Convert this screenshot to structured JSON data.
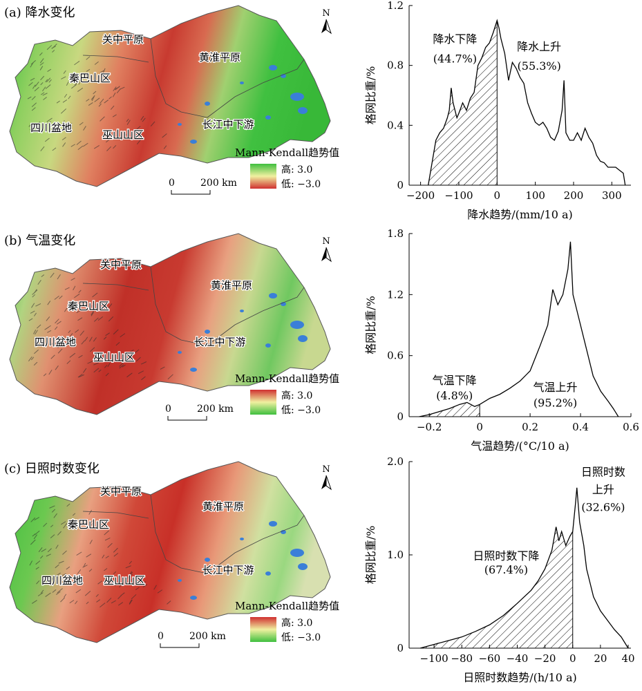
{
  "panels": [
    {
      "id": "a",
      "title": "(a) 降水变化",
      "map": {
        "regions": [
          "关中平原",
          "秦巴山区",
          "四川盆地",
          "巫山山区",
          "黄淮平原",
          "长江中下游"
        ],
        "north_label": "N",
        "legend_title": "Mann-Kendall趋势值",
        "legend_high": "高: 3.0",
        "legend_low": "低: −3.0",
        "legend_high_color": "#3fbf3f",
        "legend_low_color": "#d03030",
        "scale_zero": "0",
        "scale_label": "200 km"
      },
      "chart_data": {
        "type": "area",
        "title": "",
        "xlabel": "降水趋势/(mm/10 a)",
        "ylabel": "格网比重/%",
        "xlim": [
          -230,
          350
        ],
        "ylim": [
          0,
          1.2
        ],
        "xticks": [
          -200,
          -100,
          0,
          100,
          200,
          300
        ],
        "yticks": [
          0,
          0.4,
          0.8,
          1.2
        ],
        "xtick_labels": [
          "−200",
          "−100",
          "0",
          "100",
          "200",
          "300"
        ],
        "ytick_labels": [
          "0",
          "0.4",
          "0.8",
          "1.2"
        ],
        "x": [
          -180,
          -170,
          -160,
          -150,
          -140,
          -130,
          -125,
          -120,
          -115,
          -110,
          -105,
          -100,
          -90,
          -80,
          -70,
          -60,
          -50,
          -40,
          -30,
          -20,
          -10,
          0,
          5,
          10,
          20,
          30,
          40,
          50,
          60,
          70,
          80,
          90,
          100,
          110,
          120,
          130,
          140,
          150,
          160,
          170,
          175,
          180,
          190,
          200,
          210,
          220,
          230,
          240,
          250,
          260,
          270,
          280,
          290,
          300,
          310,
          320,
          330,
          335
        ],
        "y": [
          0,
          0.15,
          0.3,
          0.35,
          0.38,
          0.45,
          0.5,
          0.65,
          0.55,
          0.5,
          0.45,
          0.48,
          0.55,
          0.5,
          0.58,
          0.62,
          0.8,
          0.85,
          0.92,
          0.95,
          1.02,
          1.1,
          1.05,
          0.98,
          0.88,
          0.7,
          0.82,
          0.78,
          0.72,
          0.68,
          0.55,
          0.48,
          0.42,
          0.4,
          0.42,
          0.38,
          0.32,
          0.3,
          0.36,
          0.5,
          0.7,
          0.35,
          0.3,
          0.3,
          0.35,
          0.3,
          0.38,
          0.32,
          0.28,
          0.2,
          0.16,
          0.15,
          0.12,
          0.12,
          0.12,
          0.1,
          0.08,
          0
        ],
        "split_x": 0,
        "annotations": [
          {
            "text": "降水下降",
            "x": -110,
            "y": 0.95
          },
          {
            "text": "(44.7%)",
            "x": -110,
            "y": 0.82
          },
          {
            "text": "降水上升",
            "x": 110,
            "y": 0.9
          },
          {
            "text": "(55.3%)",
            "x": 110,
            "y": 0.77
          }
        ]
      }
    },
    {
      "id": "b",
      "title": "(b) 气温变化",
      "map": {
        "regions": [
          "关中平原",
          "秦巴山区",
          "四川盆地",
          "巫山山区",
          "黄淮平原",
          "长江中下游"
        ],
        "north_label": "N",
        "legend_title": "Mann-Kendall趋势值",
        "legend_high": "高: 3.0",
        "legend_low": "低: −3.0",
        "legend_high_color": "#d03030",
        "legend_low_color": "#3fbf3f",
        "scale_zero": "0",
        "scale_label": "200 km"
      },
      "chart_data": {
        "type": "area",
        "title": "",
        "xlabel": "气温趋势/(°C/10 a)",
        "ylabel": "格网比重/%",
        "xlim": [
          -0.28,
          0.6
        ],
        "ylim": [
          0,
          1.8
        ],
        "xticks": [
          -0.2,
          0,
          0.2,
          0.4,
          0.6
        ],
        "yticks": [
          0,
          0.6,
          1.2,
          1.8
        ],
        "xtick_labels": [
          "−0.2",
          "0",
          "0.2",
          "0.4",
          "0.6"
        ],
        "ytick_labels": [
          "0",
          "0.6",
          "1.2",
          "1.8"
        ],
        "x": [
          -0.24,
          -0.2,
          -0.16,
          -0.12,
          -0.08,
          -0.05,
          -0.02,
          0,
          0.04,
          0.08,
          0.12,
          0.16,
          0.2,
          0.24,
          0.27,
          0.29,
          0.31,
          0.33,
          0.35,
          0.36,
          0.37,
          0.39,
          0.42,
          0.45,
          0.48,
          0.51,
          0.53,
          0.55
        ],
        "y": [
          0,
          0.02,
          0.05,
          0.08,
          0.12,
          0.14,
          0.1,
          0.12,
          0.18,
          0.22,
          0.28,
          0.35,
          0.45,
          0.7,
          0.9,
          1.25,
          1.1,
          1.2,
          1.45,
          1.72,
          1.2,
          1.0,
          0.7,
          0.4,
          0.25,
          0.15,
          0.08,
          0
        ],
        "split_x": 0,
        "annotations": [
          {
            "text": "气温下降",
            "x": -0.1,
            "y": 0.32
          },
          {
            "text": "(4.8%)",
            "x": -0.1,
            "y": 0.17
          },
          {
            "text": "气温上升",
            "x": 0.3,
            "y": 0.25
          },
          {
            "text": "(95.2%)",
            "x": 0.3,
            "y": 0.1
          }
        ]
      }
    },
    {
      "id": "c",
      "title": "(c) 日照时数变化",
      "map": {
        "regions": [
          "关中平原",
          "秦巴山区",
          "四川盆地",
          "巫山山区",
          "黄淮平原",
          "长江中下游"
        ],
        "north_label": "N",
        "legend_title": "Mann-Kendall趋势值",
        "legend_high": "高: 3.0",
        "legend_low": "低: −3.0",
        "legend_high_color": "#d03030",
        "legend_low_color": "#3fbf3f",
        "scale_zero": "0",
        "scale_label": "200 km"
      },
      "chart_data": {
        "type": "area",
        "title": "",
        "xlabel": "日照时数趋势/(h/10 a)",
        "ylabel": "格网比重/%",
        "xlim": [
          -118,
          42
        ],
        "ylim": [
          0,
          2.0
        ],
        "xticks": [
          -100,
          -80,
          -60,
          -40,
          -20,
          0,
          20,
          40
        ],
        "yticks": [
          0,
          1.0,
          2.0
        ],
        "xtick_labels": [
          "−100",
          "−80",
          "−60",
          "−40",
          "−20",
          "0",
          "20",
          "40"
        ],
        "ytick_labels": [
          "0",
          "1.0",
          "2.0"
        ],
        "x": [
          -110,
          -100,
          -90,
          -80,
          -70,
          -60,
          -50,
          -40,
          -30,
          -25,
          -20,
          -15,
          -12,
          -10,
          -8,
          -5,
          -2,
          0,
          2,
          3,
          5,
          8,
          10,
          15,
          20,
          25,
          30,
          35,
          40
        ],
        "y": [
          0,
          0.04,
          0.08,
          0.12,
          0.18,
          0.25,
          0.35,
          0.48,
          0.62,
          0.72,
          0.85,
          1.05,
          1.3,
          1.15,
          1.25,
          1.1,
          1.2,
          1.25,
          1.55,
          1.72,
          1.35,
          1.1,
          0.85,
          0.55,
          0.4,
          0.3,
          0.2,
          0.12,
          0
        ],
        "split_x": 0,
        "annotations": [
          {
            "text": "日照时数下降",
            "x": -48,
            "y": 0.95
          },
          {
            "text": "(67.4%)",
            "x": -48,
            "y": 0.8
          },
          {
            "text": "日照时数",
            "x": 22,
            "y": 1.85
          },
          {
            "text": "上升",
            "x": 22,
            "y": 1.66
          },
          {
            "text": "(32.6%)",
            "x": 22,
            "y": 1.47
          }
        ]
      }
    }
  ]
}
